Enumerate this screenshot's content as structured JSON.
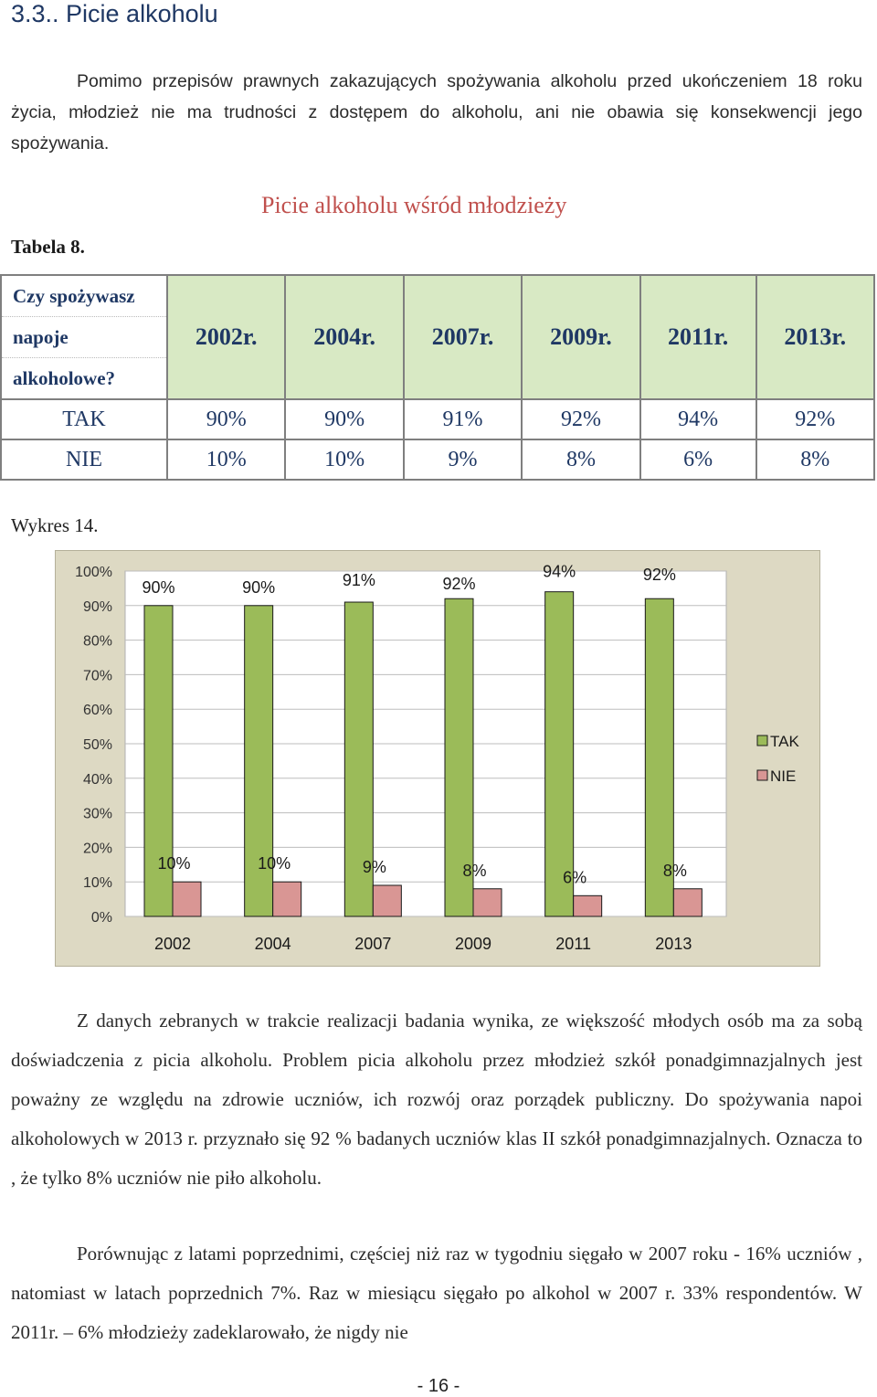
{
  "section": {
    "heading": "3.3.. Picie alkoholu"
  },
  "intro": "Pomimo przepisów prawnych zakazujących spożywania alkoholu przed ukończeniem 18 roku życia, młodzież nie ma trudności z dostępem do alkoholu, ani nie obawia się konsekwencji jego spożywania.",
  "table": {
    "label": "Tabela 8.",
    "title": "Picie alkoholu wśród młodzieży",
    "question_lines": [
      "Czy spożywasz",
      "napoje",
      "alkoholowe?"
    ],
    "years": [
      "2002r.",
      "2004r.",
      "2007r.",
      "2009r.",
      "2011r.",
      "2013r."
    ],
    "rows": [
      {
        "label": "TAK",
        "values": [
          "90%",
          "90%",
          "91%",
          "92%",
          "94%",
          "92%"
        ]
      },
      {
        "label": "NIE",
        "values": [
          "10%",
          "10%",
          "9%",
          "8%",
          "6%",
          "8%"
        ]
      }
    ]
  },
  "chart_label": "Wykres 14.",
  "chart_data": {
    "type": "bar",
    "categories": [
      "2002",
      "2004",
      "2007",
      "2009",
      "2011",
      "2013"
    ],
    "series": [
      {
        "name": "TAK",
        "values": [
          90,
          90,
          91,
          92,
          94,
          92
        ],
        "labels": [
          "90%",
          "90%",
          "91%",
          "92%",
          "94%",
          "92%"
        ],
        "color": "#9bbb59"
      },
      {
        "name": "NIE",
        "values": [
          10,
          10,
          9,
          8,
          6,
          8
        ],
        "labels": [
          "10%",
          "10%",
          "9%",
          "8%",
          "6%",
          "8%"
        ],
        "color": "#d99694"
      }
    ],
    "ylim": [
      0,
      100
    ],
    "yticks": [
      "0%",
      "10%",
      "20%",
      "30%",
      "40%",
      "50%",
      "60%",
      "70%",
      "80%",
      "90%",
      "100%"
    ],
    "grid": true,
    "legend": "right",
    "background": "#ddd9c3",
    "plot_background": "#ffffff"
  },
  "paragraph2": "Z danych zebranych w trakcie realizacji badania wynika, ze większość młodych osób ma za sobą doświadczenia z picia alkoholu. Problem picia alkoholu przez młodzież szkół ponadgimnazjalnych jest poważny ze względu na zdrowie uczniów, ich rozwój oraz porządek publiczny. Do spożywania napoi alkoholowych w 2013 r. przyznało się 92 % badanych uczniów klas II szkół ponadgimnazjalnych. Oznacza to , że tylko 8% uczniów nie piło alkoholu.",
  "paragraph3": "Porównując z latami poprzednimi, częściej niż raz w tygodniu sięgało w 2007 roku - 16% uczniów , natomiast w latach poprzednich 7%. Raz w miesiącu sięgało po alkohol w 2007 r. 33% respondentów. W 2011r. – 6% młodzieży zadeklarowało, że nigdy nie",
  "page_number": "- 16 -"
}
